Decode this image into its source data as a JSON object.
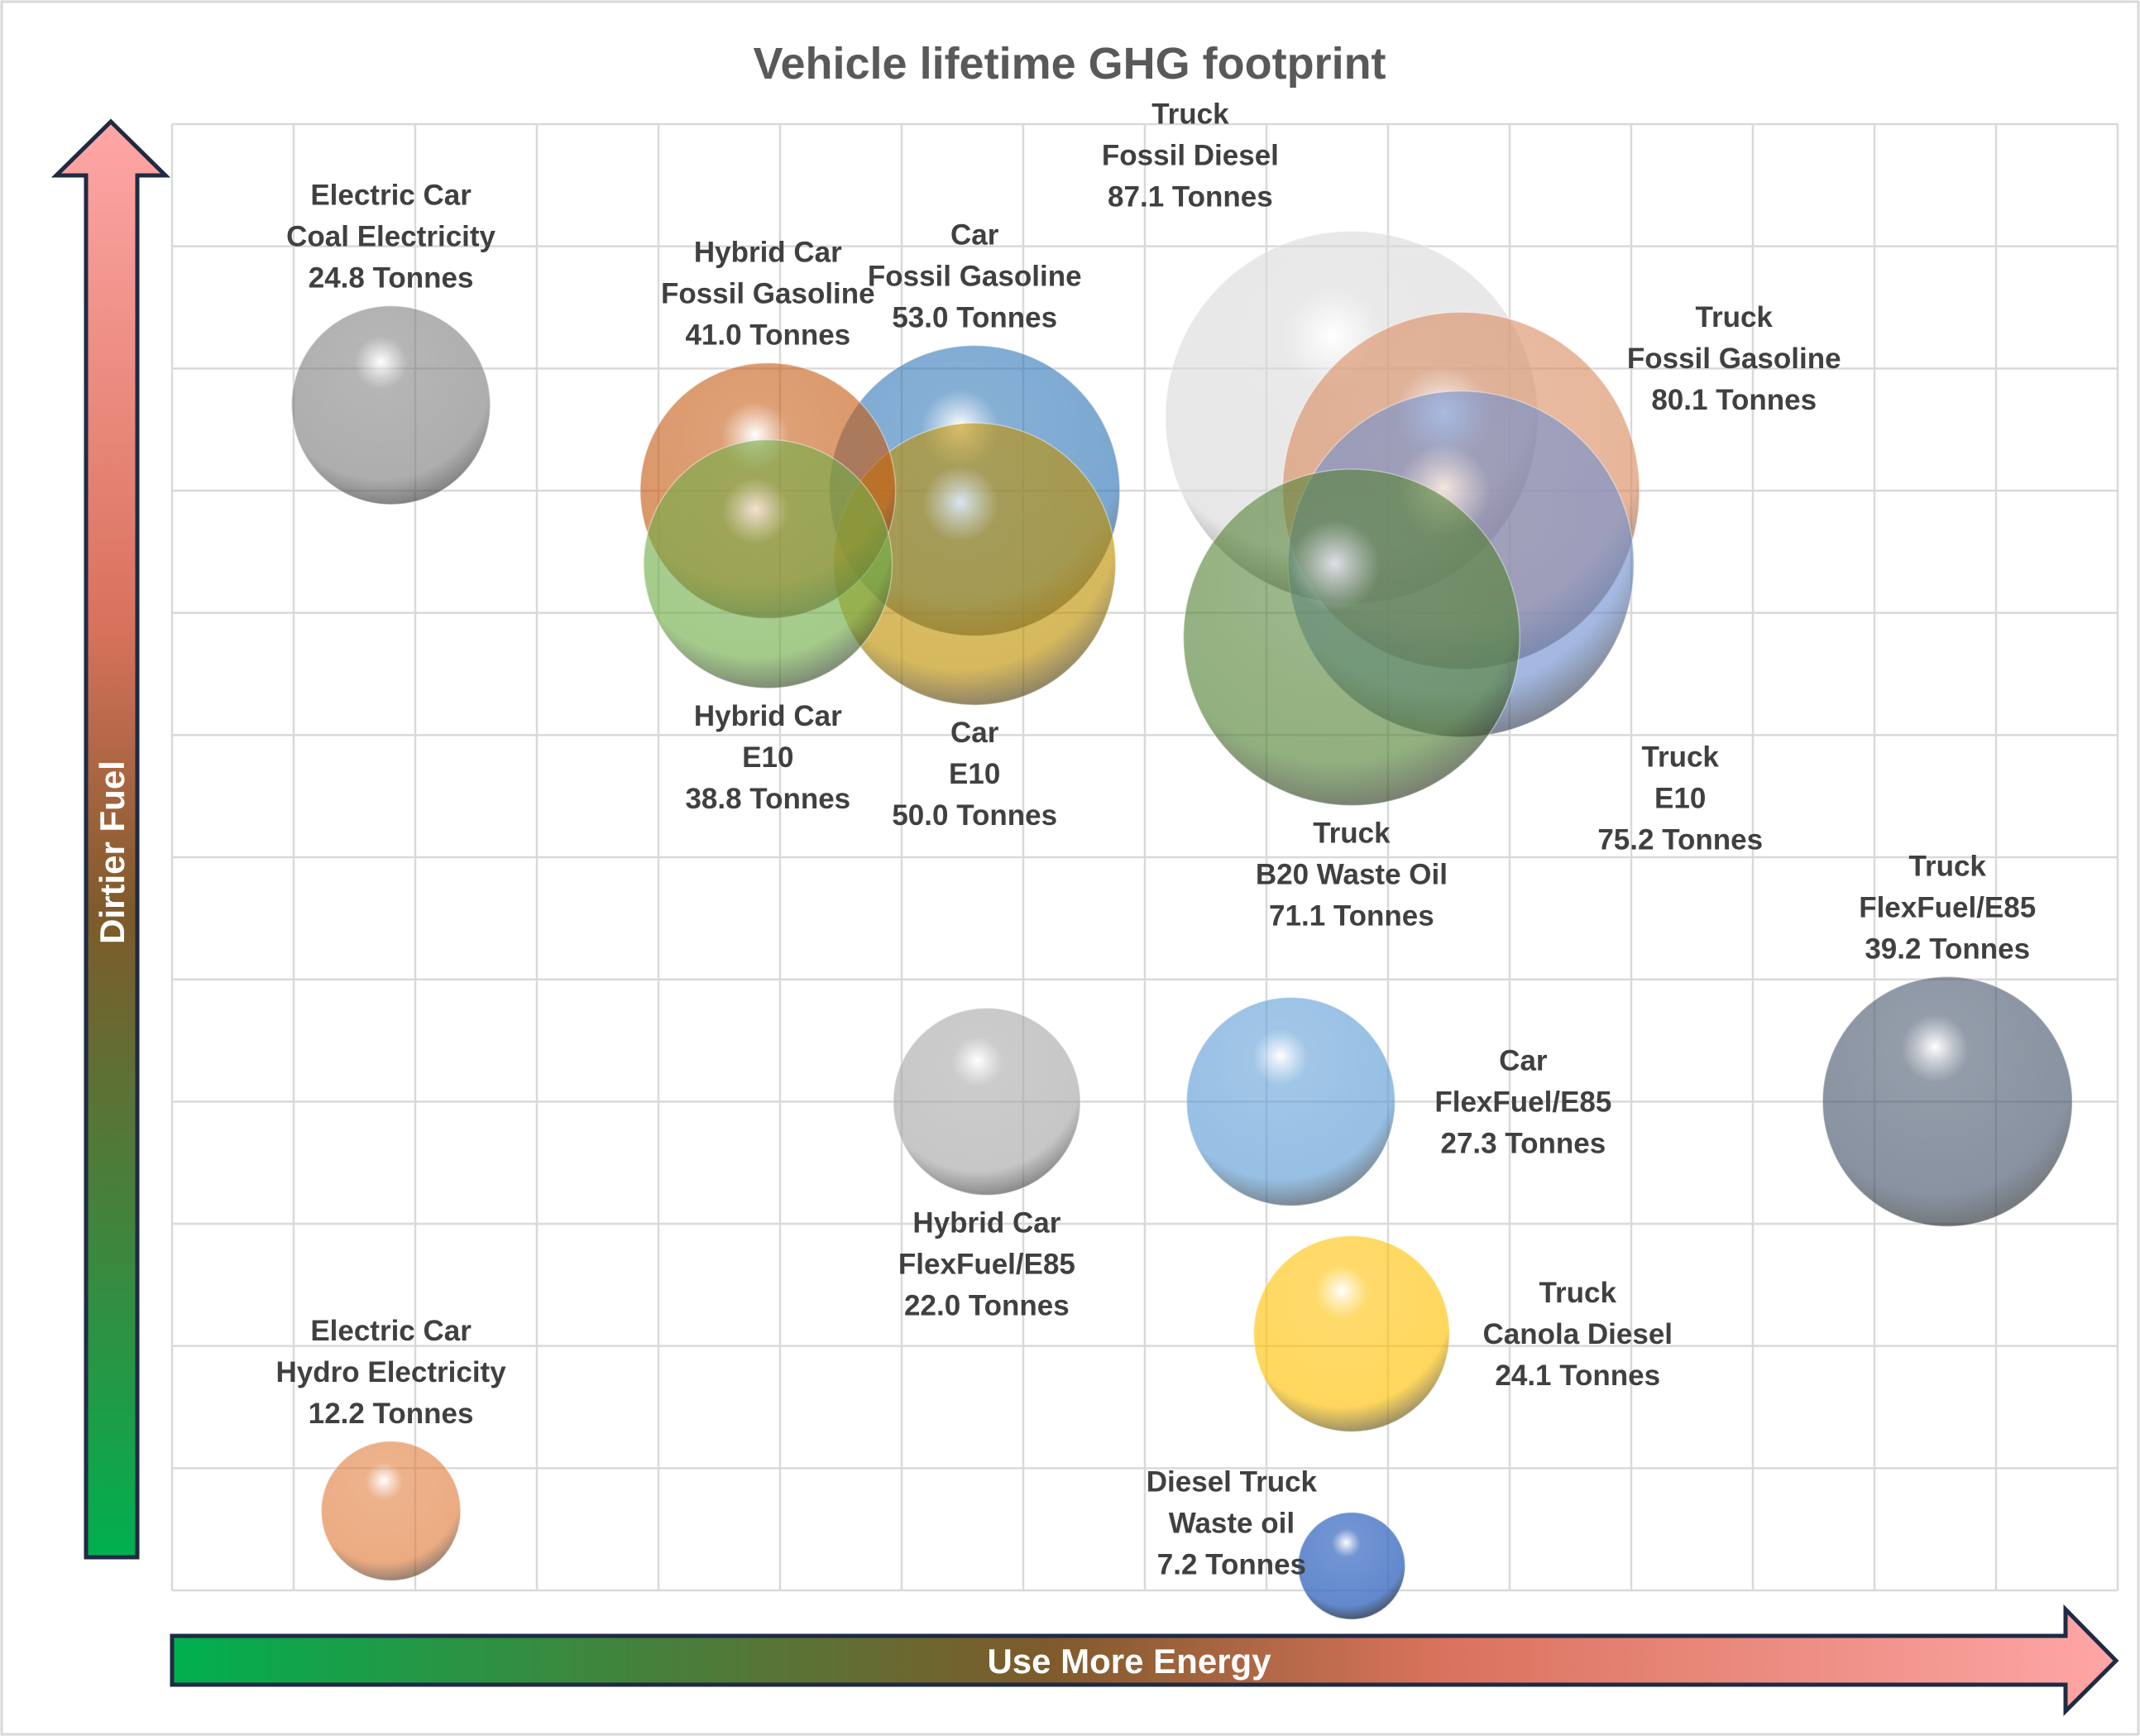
{
  "chart_data": {
    "type": "bubble",
    "title": "Vehicle lifetime GHG footprint",
    "xlabel": "Use More Energy",
    "ylabel": "Dirtier Fuel",
    "xlim": [
      0,
      16
    ],
    "ylim": [
      0,
      12
    ],
    "grid": true,
    "tick_labels": false,
    "points": [
      {
        "x": 1.8,
        "y": 9.7,
        "value": 24.8,
        "label": [
          "Electric Car",
          "Coal Electricity",
          "24.8 Tonnes"
        ],
        "color": "#7f7f7f",
        "label_pos": "above"
      },
      {
        "x": 1.8,
        "y": 0.65,
        "value": 12.2,
        "label": [
          "Electric Car",
          "Hydro Electricity",
          "12.2 Tonnes"
        ],
        "color": "#e07b39",
        "label_pos": "above"
      },
      {
        "x": 4.9,
        "y": 9.0,
        "value": 41.0,
        "label": [
          "Hybrid Car",
          "Fossil Gasoline",
          "41.0 Tonnes"
        ],
        "color": "#c55a11",
        "label_pos": "above"
      },
      {
        "x": 4.9,
        "y": 8.4,
        "value": 38.8,
        "label": [
          "Hybrid Car",
          "E10",
          "38.8 Tonnes"
        ],
        "color": "#70ad47",
        "label_pos": "below"
      },
      {
        "x": 6.6,
        "y": 9.0,
        "value": 53.0,
        "label": [
          "Car",
          "Fossil Gasoline",
          "53.0 Tonnes"
        ],
        "color": "#2e75b6",
        "label_pos": "above"
      },
      {
        "x": 6.6,
        "y": 8.4,
        "value": 50.0,
        "label": [
          "Car",
          "E10",
          "50.0 Tonnes"
        ],
        "color": "#bf9000",
        "label_pos": "below"
      },
      {
        "x": 9.7,
        "y": 9.6,
        "value": 87.1,
        "label": [
          "Truck",
          "Fossil Diesel",
          "87.1 Tonnes"
        ],
        "color": "#d9d9d9",
        "label_pos": "above-left"
      },
      {
        "x": 10.6,
        "y": 9.0,
        "value": 80.1,
        "label": [
          "Truck",
          "Fossil Gasoline",
          "80.1 Tonnes"
        ],
        "color": "#d98b5f",
        "label_pos": "right-upper"
      },
      {
        "x": 10.6,
        "y": 8.4,
        "value": 75.2,
        "label": [
          "Truck",
          "E10",
          "75.2 Tonnes"
        ],
        "color": "#6f8fcf",
        "label_pos": "right-lower"
      },
      {
        "x": 9.7,
        "y": 7.8,
        "value": 71.1,
        "label": [
          "Truck",
          "B20 Waste Oil",
          "71.1 Tonnes"
        ],
        "color": "#548235",
        "label_pos": "below"
      },
      {
        "x": 6.7,
        "y": 4.0,
        "value": 22.0,
        "label": [
          "Hybrid Car",
          "FlexFuel/E85",
          "22.0 Tonnes"
        ],
        "color": "#a6a6a6",
        "label_pos": "below"
      },
      {
        "x": 9.2,
        "y": 4.0,
        "value": 27.3,
        "label": [
          "Car",
          "FlexFuel/E85",
          "27.3 Tonnes"
        ],
        "color": "#5b9bd5",
        "label_pos": "right"
      },
      {
        "x": 14.6,
        "y": 4.0,
        "value": 39.2,
        "label": [
          "Truck",
          "FlexFuel/E85",
          "39.2 Tonnes"
        ],
        "color": "#44546a",
        "label_pos": "above"
      },
      {
        "x": 9.7,
        "y": 2.1,
        "value": 24.1,
        "label": [
          "Truck",
          "Canola Diesel",
          "24.1 Tonnes"
        ],
        "color": "#ffc000",
        "label_pos": "right"
      },
      {
        "x": 9.7,
        "y": 0.2,
        "value": 7.2,
        "label": [
          "Diesel Truck",
          "Waste oil",
          "7.2 Tonnes"
        ],
        "color": "#4472c4",
        "label_pos": "left"
      }
    ],
    "colors": {
      "axis_arrow_start": "#00b050",
      "axis_arrow_end": "#ffa6a6",
      "arrow_outline": "#1f2a44",
      "grid": "#d9d9d9"
    }
  }
}
